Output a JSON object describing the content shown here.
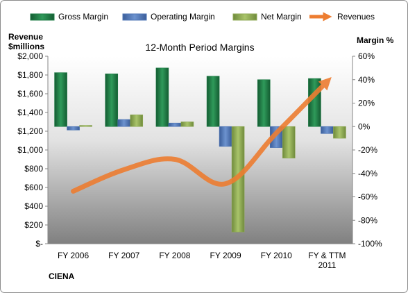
{
  "chart_data": {
    "type": "bar",
    "title": "12-Month Period Margins",
    "company_label": "CIENA",
    "left_axis_label": [
      "Revenue",
      "$millions"
    ],
    "right_axis_label": "Margin %",
    "categories": [
      "FY 2006",
      "FY 2007",
      "FY 2008",
      "FY 2009",
      "FY 2010",
      "FY & TTM 2011"
    ],
    "left_ticks": [
      "$-",
      "$200",
      "$400",
      "$600",
      "$800",
      "$1,000",
      "$1,200",
      "$1,400",
      "$1,600",
      "$1,800",
      "$2,000"
    ],
    "right_ticks": [
      "-100%",
      "-80%",
      "-60%",
      "-40%",
      "-20%",
      "0%",
      "20%",
      "40%",
      "60%"
    ],
    "ylim_left": [
      0,
      2000
    ],
    "ylim_right": [
      -100,
      60
    ],
    "legend_position": "top",
    "grid": false,
    "series": [
      {
        "name": "Gross Margin",
        "axis": "right",
        "kind": "bar",
        "color": "#1e7b45",
        "values": [
          46,
          45,
          50,
          43,
          40,
          41
        ]
      },
      {
        "name": "Operating Margin",
        "axis": "right",
        "kind": "bar",
        "color": "#4f76b6",
        "values": [
          -3,
          6,
          3,
          -17,
          -18,
          -6
        ]
      },
      {
        "name": "Net Margin",
        "axis": "right",
        "kind": "bar",
        "color": "#8faa54",
        "values": [
          1,
          10,
          4,
          -90,
          -27,
          -10
        ]
      },
      {
        "name": "Revenues",
        "axis": "left",
        "kind": "line",
        "color": "#ed7d31",
        "values": [
          560,
          790,
          900,
          640,
          1180,
          1730
        ]
      }
    ]
  }
}
